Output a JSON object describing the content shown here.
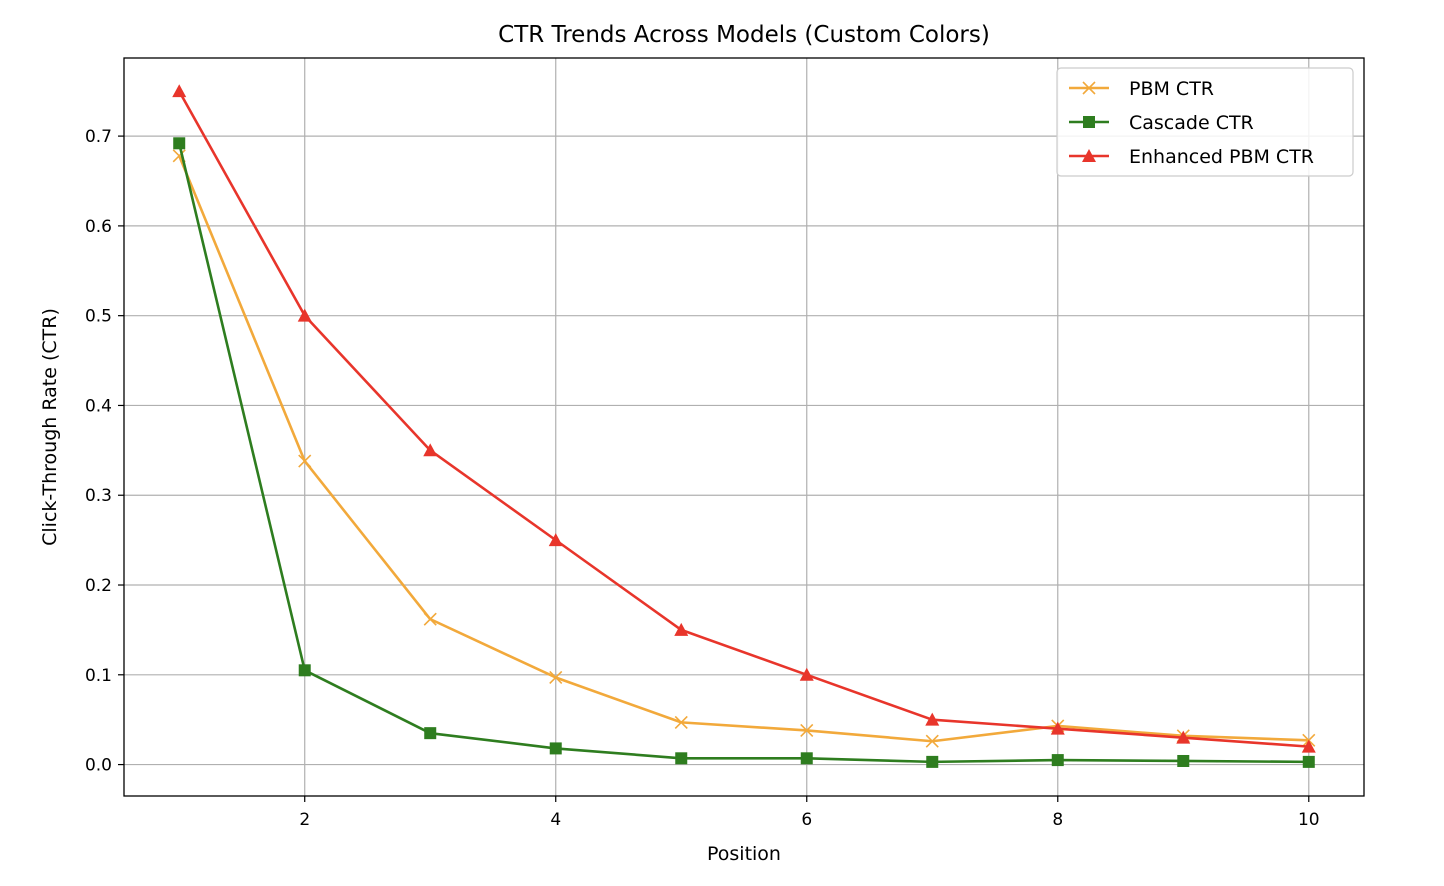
{
  "chart_data": {
    "type": "line",
    "title": "CTR Trends Across Models (Custom Colors)",
    "xlabel": "Position",
    "ylabel": "Click-Through Rate (CTR)",
    "xlim": [
      0.56,
      10.44
    ],
    "ylim": [
      -0.035,
      0.787
    ],
    "xticks": [
      2,
      4,
      6,
      8,
      10
    ],
    "yticks": [
      0.0,
      0.1,
      0.2,
      0.3,
      0.4,
      0.5,
      0.6,
      0.7
    ],
    "grid": true,
    "legend_position": "top-right",
    "x": [
      1,
      2,
      3,
      4,
      5,
      6,
      7,
      8,
      9,
      10
    ],
    "series": [
      {
        "name": "PBM CTR",
        "color": "#f2a93b",
        "marker": "x",
        "values": [
          0.678,
          0.338,
          0.162,
          0.097,
          0.047,
          0.038,
          0.026,
          0.043,
          0.032,
          0.027
        ]
      },
      {
        "name": "Cascade CTR",
        "color": "#2e7d1f",
        "marker": "square",
        "values": [
          0.692,
          0.105,
          0.035,
          0.018,
          0.007,
          0.007,
          0.003,
          0.005,
          0.004,
          0.003
        ]
      },
      {
        "name": "Enhanced PBM CTR",
        "color": "#e8352b",
        "marker": "triangle",
        "values": [
          0.75,
          0.5,
          0.35,
          0.25,
          0.15,
          0.1,
          0.05,
          0.04,
          0.03,
          0.02
        ]
      }
    ]
  }
}
